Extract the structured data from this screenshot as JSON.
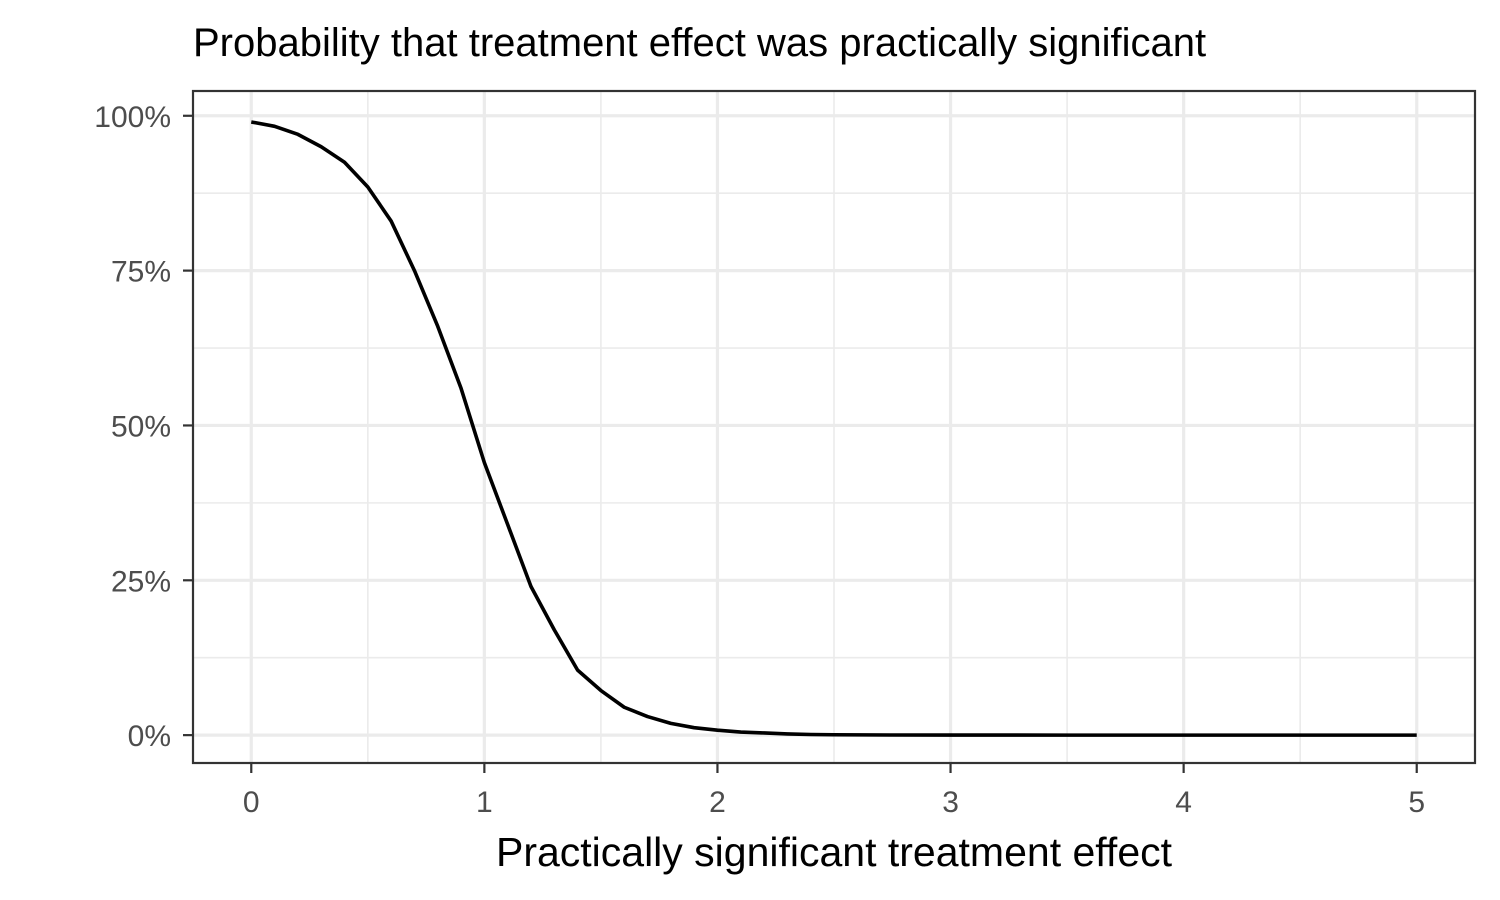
{
  "chart_data": {
    "type": "line",
    "title": "Probability that treatment effect was practically significant",
    "xlabel": "Practically significant treatment effect",
    "ylabel": "",
    "xlim": [
      -0.25,
      5.25
    ],
    "ylim": [
      -0.045,
      1.04
    ],
    "x_ticks": [
      0,
      1,
      2,
      3,
      4,
      5
    ],
    "x_tick_labels": [
      "0",
      "1",
      "2",
      "3",
      "4",
      "5"
    ],
    "x_minor_ticks": [
      0.5,
      1.5,
      2.5,
      3.5,
      4.5
    ],
    "y_ticks": [
      0,
      0.25,
      0.5,
      0.75,
      1
    ],
    "y_tick_labels": [
      "0%",
      "25%",
      "50%",
      "75%",
      "100%"
    ],
    "y_minor_ticks": [
      0.125,
      0.375,
      0.625,
      0.875
    ],
    "grid": true,
    "legend": "none",
    "line_color": "#000000",
    "panel_border_color": "#333333",
    "grid_color": "#ebebeb",
    "series": [
      {
        "x": [
          0,
          0.1,
          0.2,
          0.3,
          0.4,
          0.5,
          0.6,
          0.7,
          0.8,
          0.9,
          1.0,
          1.1,
          1.2,
          1.3,
          1.4,
          1.5,
          1.6,
          1.7,
          1.8,
          1.9,
          2.0,
          2.1,
          2.2,
          2.3,
          2.4,
          2.5,
          2.75,
          3.0,
          3.5,
          4.0,
          4.5,
          5.0
        ],
        "y": [
          0.99,
          0.983,
          0.97,
          0.95,
          0.925,
          0.885,
          0.83,
          0.75,
          0.66,
          0.56,
          0.44,
          0.34,
          0.24,
          0.17,
          0.105,
          0.072,
          0.045,
          0.03,
          0.019,
          0.012,
          0.008,
          0.005,
          0.0035,
          0.002,
          0.001,
          0.0006,
          0.0002,
          0.0001,
          0,
          0,
          0,
          0
        ]
      }
    ]
  }
}
